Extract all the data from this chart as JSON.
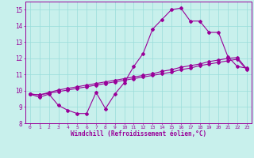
{
  "xlabel": "Windchill (Refroidissement éolien,°C)",
  "bg_color": "#c8f0ec",
  "line_color": "#990099",
  "grid_color": "#99ddda",
  "x_values": [
    0,
    1,
    2,
    3,
    4,
    5,
    6,
    7,
    8,
    9,
    10,
    11,
    12,
    13,
    14,
    15,
    16,
    17,
    18,
    19,
    20,
    21,
    22,
    23
  ],
  "line1": [
    9.8,
    9.6,
    9.8,
    9.1,
    8.8,
    8.6,
    8.6,
    9.9,
    8.9,
    9.8,
    10.5,
    11.5,
    12.3,
    13.8,
    14.4,
    15.0,
    15.1,
    14.3,
    14.3,
    13.6,
    13.6,
    12.1,
    11.5,
    11.4
  ],
  "line2": [
    9.8,
    9.75,
    9.9,
    10.05,
    10.15,
    10.25,
    10.35,
    10.45,
    10.55,
    10.65,
    10.75,
    10.85,
    10.95,
    11.05,
    11.2,
    11.3,
    11.45,
    11.55,
    11.65,
    11.8,
    11.9,
    12.0,
    12.05,
    11.35
  ],
  "line3": [
    9.8,
    9.75,
    9.85,
    9.95,
    10.05,
    10.15,
    10.25,
    10.35,
    10.45,
    10.55,
    10.65,
    10.75,
    10.85,
    10.95,
    11.05,
    11.15,
    11.3,
    11.4,
    11.55,
    11.65,
    11.75,
    11.85,
    11.95,
    11.3
  ],
  "ylim": [
    8,
    15.5
  ],
  "yticks": [
    8,
    9,
    10,
    11,
    12,
    13,
    14,
    15
  ],
  "xlim": [
    -0.5,
    23.5
  ]
}
